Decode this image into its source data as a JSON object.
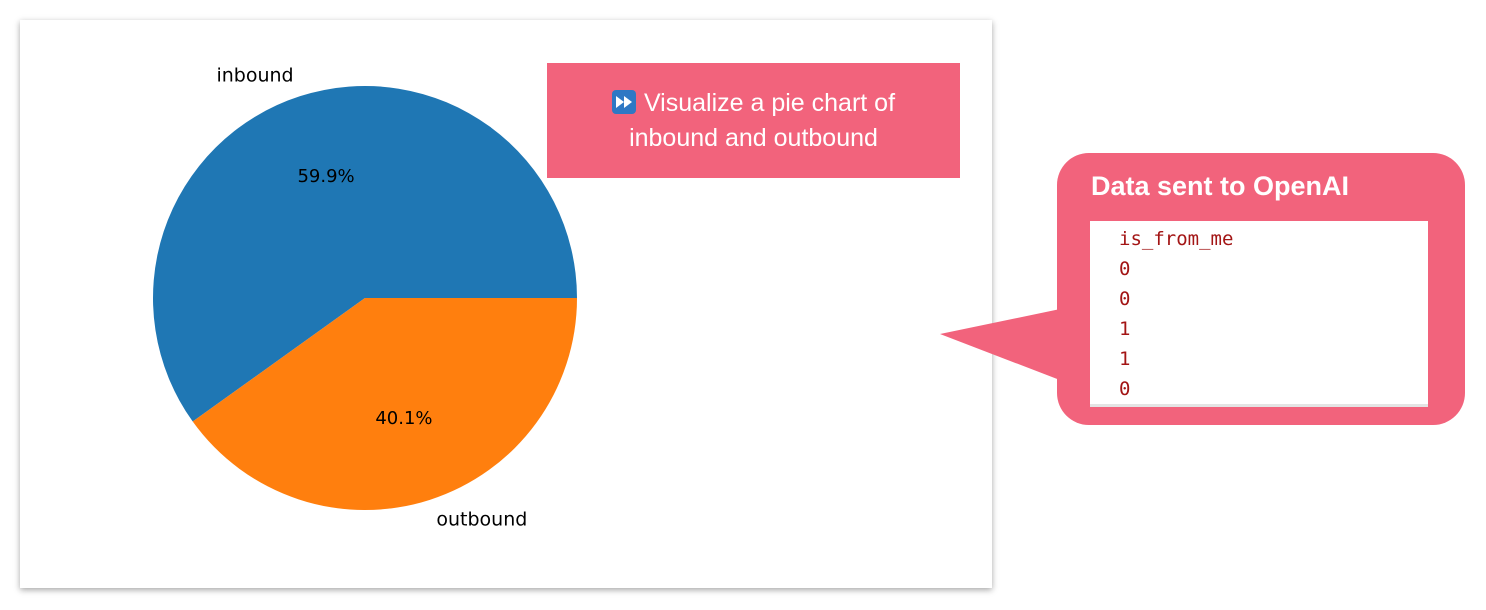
{
  "chart_data": {
    "type": "pie",
    "categories": [
      "inbound",
      "outbound"
    ],
    "values": [
      59.9,
      40.1
    ],
    "value_labels": [
      "59.9%",
      "40.1%"
    ],
    "colors": [
      "#1f77b4",
      "#ff7f0e"
    ],
    "start_angle_deg": 0,
    "direction": "counterclockwise"
  },
  "prompt": {
    "icon": "fast-forward-icon",
    "line1": "Visualize a pie chart of",
    "line2": "inbound and outbound"
  },
  "bubble": {
    "title": "Data sent to OpenAI",
    "table": {
      "header": "is_from_me",
      "rows": [
        "0",
        "0",
        "1",
        "1",
        "0"
      ]
    }
  }
}
